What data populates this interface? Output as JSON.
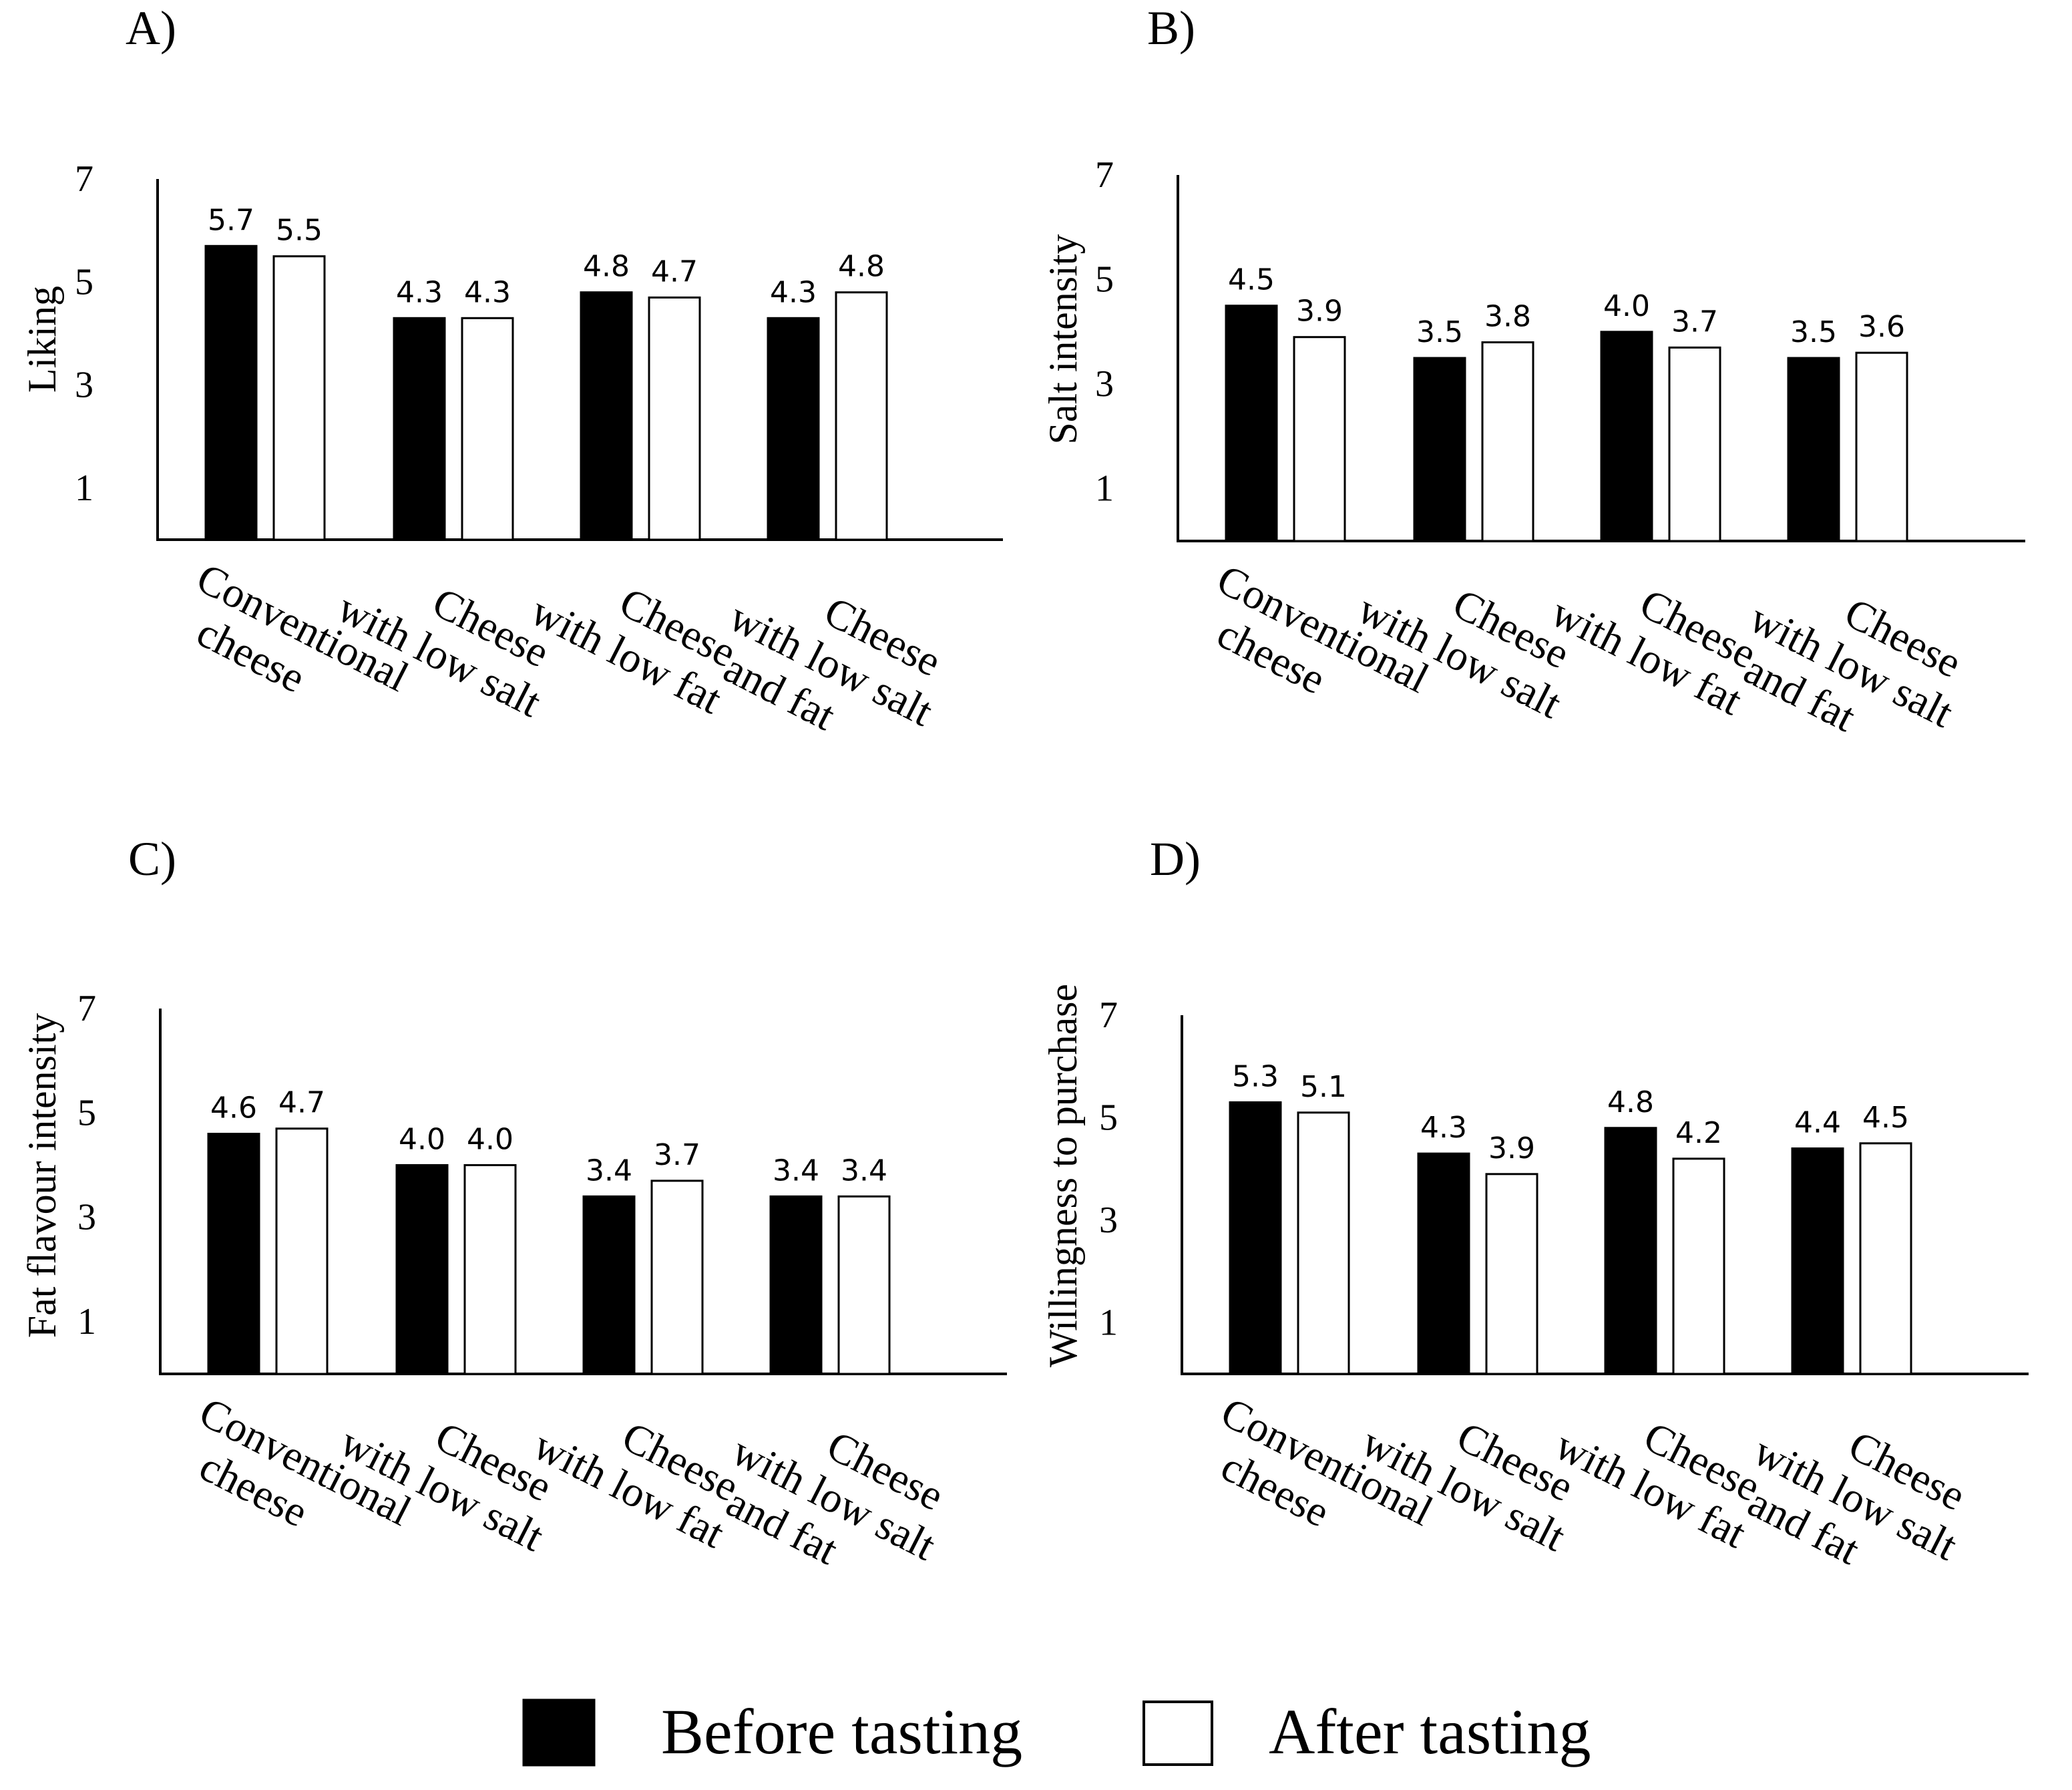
{
  "figure": {
    "legend": [
      {
        "label": "Before tasting",
        "color": "#000000"
      },
      {
        "label": "After tasting",
        "color": "#ffffff"
      }
    ]
  },
  "chart_data": [
    {
      "type": "bar",
      "panel_label": "A)",
      "ylabel": "Liking",
      "xlabel": "",
      "ylim": [
        0,
        7
      ],
      "yticks": [
        1,
        3,
        5,
        7
      ],
      "grid": false,
      "categories": [
        [
          "Conventional",
          "cheese"
        ],
        [
          "Cheese",
          "with low salt"
        ],
        [
          "Cheese",
          "with low fat"
        ],
        [
          "Cheese",
          "with low salt",
          "and fat"
        ]
      ],
      "series": [
        {
          "name": "Before tasting",
          "values": [
            5.7,
            4.3,
            4.8,
            4.3
          ],
          "labels": [
            "5.7",
            "4.3",
            "4.8",
            "4.3"
          ]
        },
        {
          "name": "After tasting",
          "values": [
            5.5,
            4.3,
            4.7,
            4.8
          ],
          "labels": [
            "5.5",
            "4.3",
            "4.7",
            "4.8"
          ]
        }
      ]
    },
    {
      "type": "bar",
      "panel_label": "B)",
      "ylabel": "Salt intensity",
      "xlabel": "",
      "ylim": [
        0,
        7
      ],
      "yticks": [
        1,
        3,
        5,
        7
      ],
      "grid": false,
      "categories": [
        [
          "Conventional",
          "cheese"
        ],
        [
          "Cheese",
          "with low salt"
        ],
        [
          "Cheese",
          "with low fat"
        ],
        [
          "Cheese",
          "with low salt",
          "and fat"
        ]
      ],
      "series": [
        {
          "name": "Before tasting",
          "values": [
            4.5,
            3.5,
            4.0,
            3.5
          ],
          "labels": [
            "4.5",
            "3.5",
            "4.0",
            "3.5"
          ]
        },
        {
          "name": "After tasting",
          "values": [
            3.9,
            3.8,
            3.7,
            3.6
          ],
          "labels": [
            "3.9",
            "3.8",
            "3.7",
            "3.6"
          ]
        }
      ]
    },
    {
      "type": "bar",
      "panel_label": "C)",
      "ylabel": "Fat flavour intensity",
      "xlabel": "",
      "ylim": [
        0,
        7
      ],
      "yticks": [
        1,
        3,
        5,
        7
      ],
      "grid": false,
      "categories": [
        [
          "Conventional",
          "cheese"
        ],
        [
          "Cheese",
          "with low salt"
        ],
        [
          "Cheese",
          "with low fat"
        ],
        [
          "Cheese",
          "with low salt",
          "and fat"
        ]
      ],
      "series": [
        {
          "name": "Before tasting",
          "values": [
            4.6,
            4.0,
            3.4,
            3.4
          ],
          "labels": [
            "4.6",
            "4.0",
            "3.4",
            "3.4"
          ]
        },
        {
          "name": "After tasting",
          "values": [
            4.7,
            4.0,
            3.7,
            3.4
          ],
          "labels": [
            "4.7",
            "4.0",
            "3.7",
            "3.4"
          ]
        }
      ]
    },
    {
      "type": "bar",
      "panel_label": "D)",
      "ylabel": "Willingness to purchase",
      "xlabel": "",
      "ylim": [
        0,
        7
      ],
      "yticks": [
        1,
        3,
        5,
        7
      ],
      "grid": false,
      "categories": [
        [
          "Conventional",
          "cheese"
        ],
        [
          "Cheese",
          "with low salt"
        ],
        [
          "Cheese",
          "with low fat"
        ],
        [
          "Cheese",
          "with low salt",
          "and fat"
        ]
      ],
      "series": [
        {
          "name": "Before tasting",
          "values": [
            5.3,
            4.3,
            4.8,
            4.4
          ],
          "labels": [
            "5.3",
            "4.3",
            "4.8",
            "4.4"
          ]
        },
        {
          "name": "After tasting",
          "values": [
            5.1,
            3.9,
            4.2,
            4.5
          ],
          "labels": [
            "5.1",
            "3.9",
            "4.2",
            "4.5"
          ]
        }
      ]
    }
  ]
}
